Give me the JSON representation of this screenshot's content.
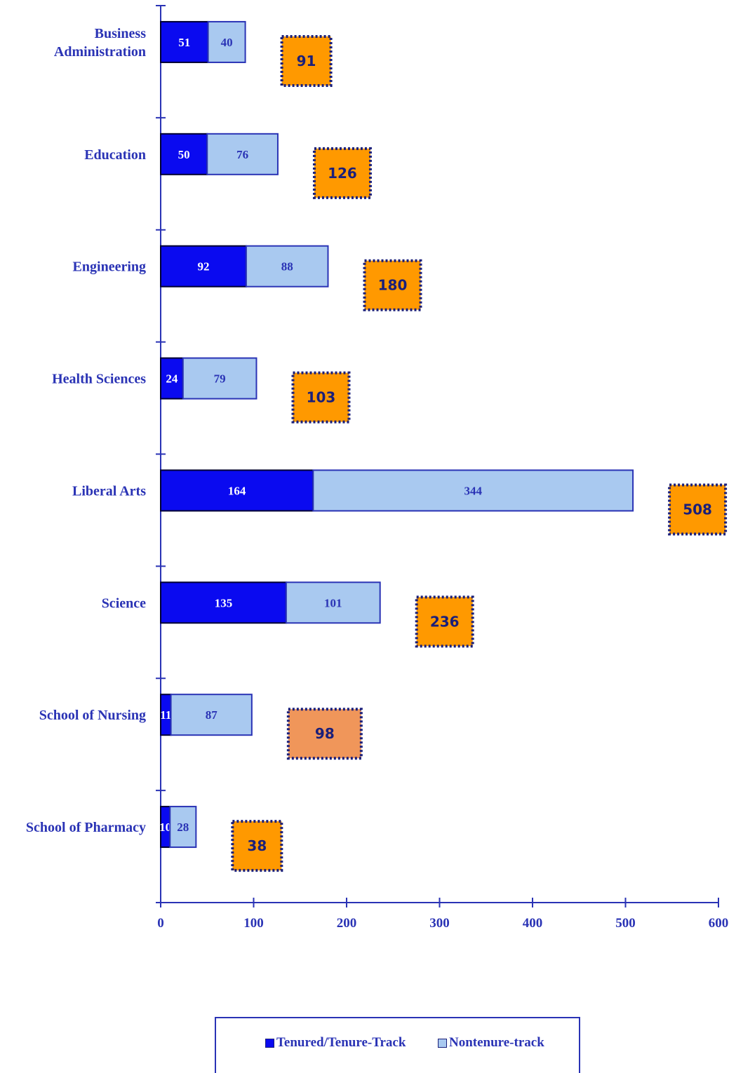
{
  "chart_data": {
    "type": "bar",
    "orientation": "horizontal",
    "stacked": true,
    "categories": [
      "Business Administration",
      "Education",
      "Engineering",
      "Health Sciences",
      "Liberal Arts",
      "Science",
      "School of Nursing",
      "School of Pharmacy"
    ],
    "category_lines": [
      [
        "Business",
        "Administration"
      ],
      [
        "Education"
      ],
      [
        "Engineering"
      ],
      [
        "Health Sciences"
      ],
      [
        "Liberal Arts"
      ],
      [
        "Science"
      ],
      [
        "School of Nursing"
      ],
      [
        "School of Pharmacy"
      ]
    ],
    "series": [
      {
        "name": "Tenured/Tenure-Track",
        "values": [
          51,
          50,
          92,
          24,
          164,
          135,
          11,
          10
        ],
        "color": "#0a0af0"
      },
      {
        "name": "Nontenure-track",
        "values": [
          40,
          76,
          88,
          79,
          344,
          101,
          87,
          28
        ],
        "color": "#a9c9f0"
      }
    ],
    "totals": [
      91,
      126,
      180,
      103,
      508,
      236,
      98,
      38
    ],
    "total_box_colors": [
      "#ff9900",
      "#ff9900",
      "#ff9900",
      "#ff9900",
      "#ff9900",
      "#ff9900",
      "#f0965a",
      "#ff9900"
    ],
    "xlim": [
      0,
      600
    ],
    "xticks": [
      0,
      100,
      200,
      300,
      400,
      500,
      600
    ],
    "grid": false,
    "legend_position": "bottom",
    "axis_color": "#2a33b5",
    "label_color": "#2a33b5"
  }
}
